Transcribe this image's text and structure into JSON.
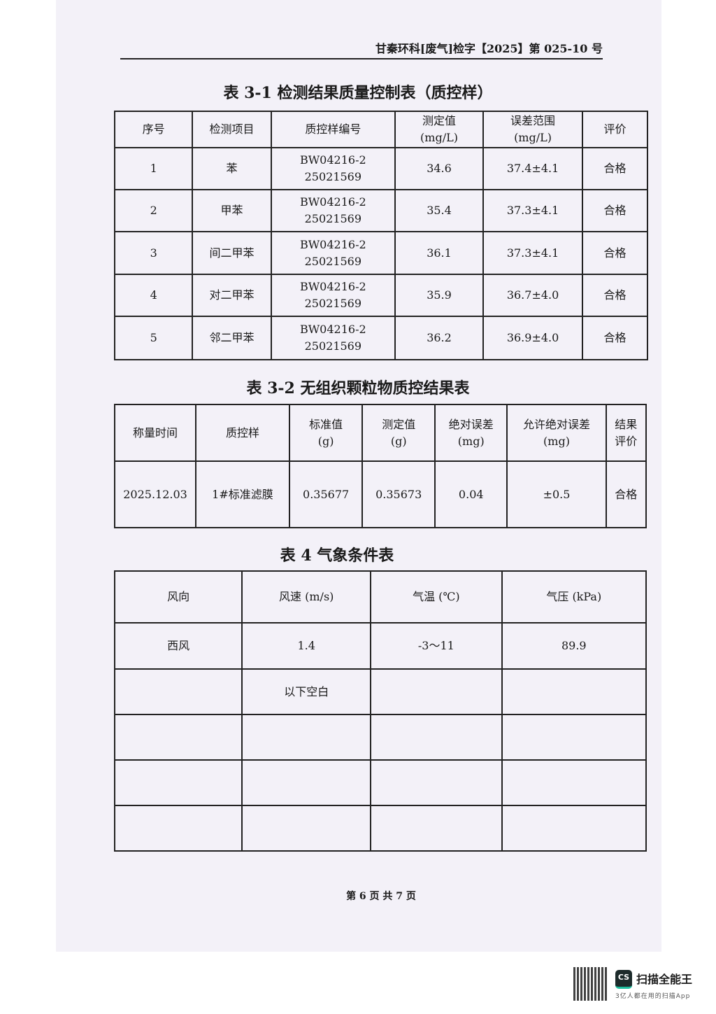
{
  "header": {
    "doc_number": "甘秦环科[废气]检字【2025】第 025-10 号"
  },
  "table1": {
    "title": "表 3-1 检测结果质量控制表（质控样）",
    "headers": [
      "序号",
      "检测项目",
      "质控样编号",
      "测定值\n(mg/L)",
      "误差范围\n(mg/L)",
      "评价"
    ],
    "rows": [
      [
        "1",
        "苯",
        "BW04216-2\n25021569",
        "34.6",
        "37.4±4.1",
        "合格"
      ],
      [
        "2",
        "甲苯",
        "BW04216-2\n25021569",
        "35.4",
        "37.3±4.1",
        "合格"
      ],
      [
        "3",
        "间二甲苯",
        "BW04216-2\n25021569",
        "36.1",
        "37.3±4.1",
        "合格"
      ],
      [
        "4",
        "对二甲苯",
        "BW04216-2\n25021569",
        "35.9",
        "36.7±4.0",
        "合格"
      ],
      [
        "5",
        "邻二甲苯",
        "BW04216-2\n25021569",
        "36.2",
        "36.9±4.0",
        "合格"
      ]
    ]
  },
  "table2": {
    "title": "表 3-2 无组织颗粒物质控结果表",
    "headers": [
      "称量时间",
      "质控样",
      "标准值\n(g)",
      "测定值\n(g)",
      "绝对误差\n(mg)",
      "允许绝对误差\n(mg)",
      "结果\n评价"
    ],
    "rows": [
      [
        "2025.12.03",
        "1#标准滤膜",
        "0.35677",
        "0.35673",
        "0.04",
        "±0.5",
        "合格"
      ]
    ]
  },
  "table3": {
    "title": "表 4 气象条件表",
    "headers": [
      "风向",
      "风速 (m/s)",
      "气温 (℃)",
      "气压 (kPa)"
    ],
    "rows": [
      [
        "西风",
        "1.4",
        "-3～11",
        "89.9"
      ],
      [
        "",
        "以下空白",
        "",
        ""
      ],
      [
        "",
        "",
        "",
        ""
      ],
      [
        "",
        "",
        "",
        ""
      ],
      [
        "",
        "",
        "",
        ""
      ]
    ]
  },
  "footer": {
    "page": "第 6 页 共 7 页"
  },
  "watermark": {
    "app_name": "扫描全能王",
    "logo": "CS",
    "tagline": "3亿人都在用的扫描App"
  }
}
